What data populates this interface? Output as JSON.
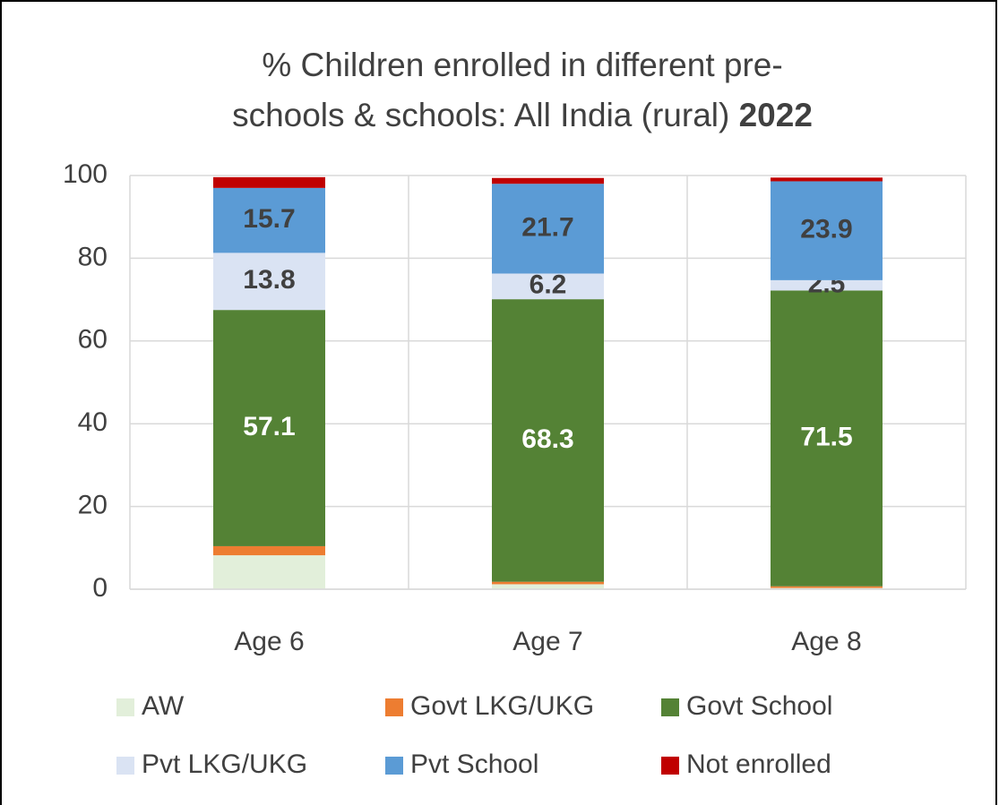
{
  "chart_data": {
    "type": "stacked_bar",
    "title_lines": [
      "% Children enrolled in different pre-",
      "schools & schools: All India (rural)"
    ],
    "title_emphasis": "2022",
    "categories": [
      "Age 6",
      "Age 7",
      "Age 8"
    ],
    "series": [
      {
        "name": "AW",
        "color": "#e2efda",
        "values": [
          8.2,
          1.2,
          0.3
        ],
        "labels": false
      },
      {
        "name": "Govt LKG/UKG",
        "color": "#ed7d31",
        "values": [
          2.2,
          0.6,
          0.4
        ],
        "labels": false
      },
      {
        "name": "Govt School",
        "color": "#548235",
        "values": [
          57.1,
          68.3,
          71.5
        ],
        "labels": true,
        "label_color": "#ffffff"
      },
      {
        "name": "Pvt LKG/UKG",
        "color": "#dae3f3",
        "values": [
          13.8,
          6.2,
          2.5
        ],
        "labels": true,
        "label_color": "#404040"
      },
      {
        "name": "Pvt School",
        "color": "#5b9bd5",
        "values": [
          15.7,
          21.7,
          23.9
        ],
        "labels": true,
        "label_color": "#404040"
      },
      {
        "name": "Not enrolled",
        "color": "#c00000",
        "values": [
          2.6,
          1.4,
          0.9
        ],
        "labels": false
      }
    ],
    "ylim": [
      0,
      100
    ],
    "yticks": [
      0,
      20,
      40,
      60,
      80,
      100
    ],
    "grid": true,
    "legend": "bottom"
  }
}
